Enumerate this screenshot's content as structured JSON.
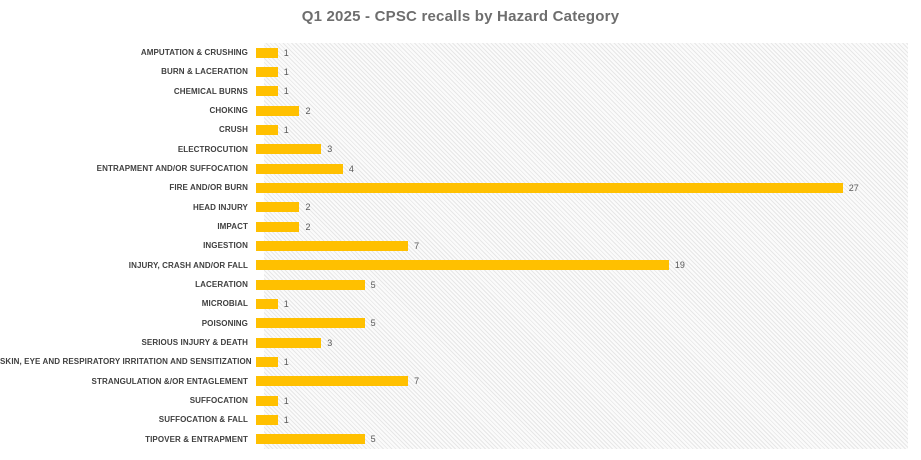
{
  "chart_data": {
    "type": "bar",
    "orientation": "horizontal",
    "title": "Q1 2025 - CPSC recalls by Hazard Category",
    "categories": [
      "AMPUTATION & CRUSHING",
      "BURN & LACERATION",
      "CHEMICAL BURNS",
      "CHOKING",
      "CRUSH",
      "ELECTROCUTION",
      "ENTRAPMENT AND/OR SUFFOCATION",
      "FIRE AND/OR BURN",
      "HEAD INJURY",
      "IMPACT",
      "INGESTION",
      "INJURY, CRASH AND/OR FALL",
      "LACERATION",
      "MICROBIAL",
      "POISONING",
      "SERIOUS INJURY & DEATH",
      "SKIN, EYE AND RESPIRATORY IRRITATION AND SENSITIZATION",
      "STRANGULATION &/OR ENTAGLEMENT",
      "SUFFOCATION",
      "SUFFOCATION & FALL",
      "TIPOVER & ENTRAPMENT"
    ],
    "values": [
      1,
      1,
      1,
      2,
      1,
      3,
      4,
      27,
      2,
      2,
      7,
      19,
      5,
      1,
      5,
      3,
      1,
      7,
      1,
      1,
      5
    ],
    "data_labels": true,
    "xlabel": "",
    "ylabel": "",
    "xlim": [
      0,
      30
    ],
    "grid": false,
    "legend": false,
    "colors": {
      "bar": "#FFC000",
      "title": "#6e6e6e",
      "category_label": "#404040",
      "value_label": "#595959",
      "plot_hatch_line": "#e7e7e7",
      "background": "#ffffff"
    }
  }
}
